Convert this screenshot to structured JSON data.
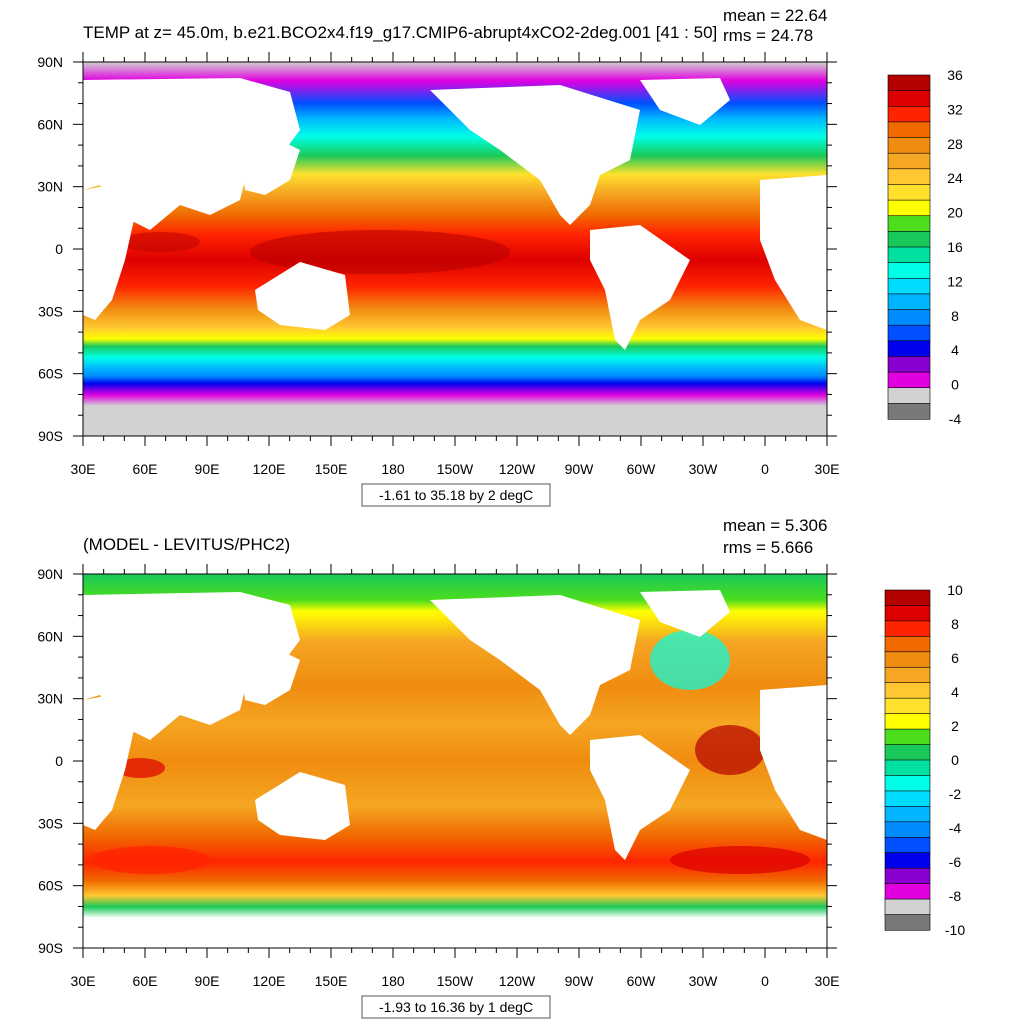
{
  "panels": [
    {
      "title": "TEMP at z=  45.0m, b.e21.BCO2x4.f19_g17.CMIP6-abrupt4xCO2-2deg.001 [41 : 50]",
      "mean_text": "mean = 22.64",
      "rms_text": "rms = 24.78",
      "info_box": "-1.61 to 35.18 by 2 degC",
      "lat_ticks": [
        "90N",
        "60N",
        "30N",
        "0",
        "30S",
        "60S",
        "90S"
      ],
      "lon_ticks": [
        "30E",
        "60E",
        "90E",
        "120E",
        "150E",
        "180",
        "150W",
        "120W",
        "90W",
        "60W",
        "30W",
        "0",
        "30E"
      ],
      "colorbar": {
        "labels": [
          "36",
          "32",
          "28",
          "24",
          "20",
          "16",
          "12",
          "8",
          "4",
          "0",
          "-4"
        ],
        "colors": [
          "#b50000",
          "#dd0000",
          "#ff2400",
          "#f06a00",
          "#f08c10",
          "#f5a623",
          "#ffc832",
          "#ffe12d",
          "#ffff00",
          "#4cdd1c",
          "#1ac95a",
          "#00e0a0",
          "#00ffe6",
          "#00dcff",
          "#00b4ff",
          "#008cff",
          "#0050ff",
          "#0000ee",
          "#8a00d0",
          "#e000e0",
          "#d2d2d2",
          "#787878"
        ]
      }
    },
    {
      "title": "(MODEL - LEVITUS/PHC2)",
      "mean_text": "mean = 5.306",
      "rms_text": "rms = 5.666",
      "info_box": "-1.93 to 16.36 by 1 degC",
      "lat_ticks": [
        "90N",
        "60N",
        "30N",
        "0",
        "30S",
        "60S",
        "90S"
      ],
      "lon_ticks": [
        "30E",
        "60E",
        "90E",
        "120E",
        "150E",
        "180",
        "150W",
        "120W",
        "90W",
        "60W",
        "30W",
        "0",
        "30E"
      ],
      "colorbar": {
        "labels": [
          "10",
          "8",
          "6",
          "4",
          "2",
          "0",
          "-2",
          "-4",
          "-6",
          "-8",
          "-10"
        ],
        "colors": [
          "#b50000",
          "#dd0000",
          "#ff2400",
          "#f06a00",
          "#f08c10",
          "#f5a623",
          "#ffc832",
          "#ffe12d",
          "#ffff00",
          "#4cdd1c",
          "#1ac95a",
          "#00e0a0",
          "#00ffe6",
          "#00dcff",
          "#00b4ff",
          "#008cff",
          "#0050ff",
          "#0000ee",
          "#8a00d0",
          "#e000e0",
          "#d2d2d2",
          "#787878"
        ]
      }
    }
  ]
}
